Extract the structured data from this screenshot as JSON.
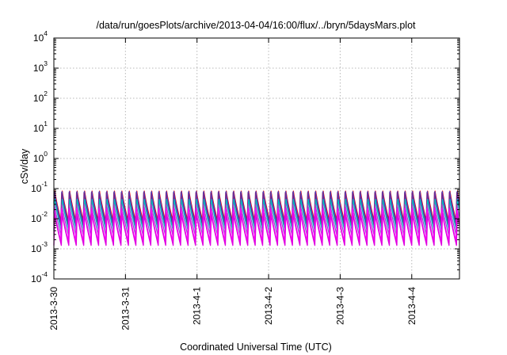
{
  "chart_data": {
    "type": "line",
    "title": "/data/run/goesPlots/archive/2013-04-04/16:00/flux/../bryn/5daysMars.plot",
    "xlabel": "Coordinated Universal Time (UTC)",
    "ylabel": "cSv/day",
    "y_scale": "log",
    "ylim": [
      0.0001,
      10000
    ],
    "xlim": [
      "2013-03-30 00:00",
      "2013-04-04 16:00"
    ],
    "x_ticks": [
      "2013-3-30",
      "2013-3-31",
      "2013-4-1",
      "2013-4-2",
      "2013-4-3",
      "2013-4-4"
    ],
    "y_ticks": [
      {
        "base": "10",
        "exp": "-4"
      },
      {
        "base": "10",
        "exp": "-3"
      },
      {
        "base": "10",
        "exp": "-2"
      },
      {
        "base": "10",
        "exp": "-1"
      },
      {
        "base": "10",
        "exp": "0"
      },
      {
        "base": "10",
        "exp": "1"
      },
      {
        "base": "10",
        "exp": "2"
      },
      {
        "base": "10",
        "exp": "3"
      },
      {
        "base": "10",
        "exp": "4"
      }
    ],
    "grid": true,
    "legend": "none",
    "sawtooth_period_hours": 2.5,
    "series": [
      {
        "color": "#ff0000",
        "peak": 0.085,
        "trough": 0.0075
      },
      {
        "color": "#0055ff",
        "peak": 0.08,
        "trough": 0.0065
      },
      {
        "color": "#7a2a8a",
        "peak": 0.075,
        "trough": 0.006
      },
      {
        "color": "#00c0c0",
        "peak": 0.045,
        "trough": 0.004
      },
      {
        "color": "#9955cc",
        "peak": 0.03,
        "trough": 0.0028
      },
      {
        "color": "#ff00ff",
        "peak": 0.022,
        "trough": 0.0018
      },
      {
        "color": "#e000e0",
        "peak": 0.015,
        "trough": 0.0013
      }
    ]
  }
}
